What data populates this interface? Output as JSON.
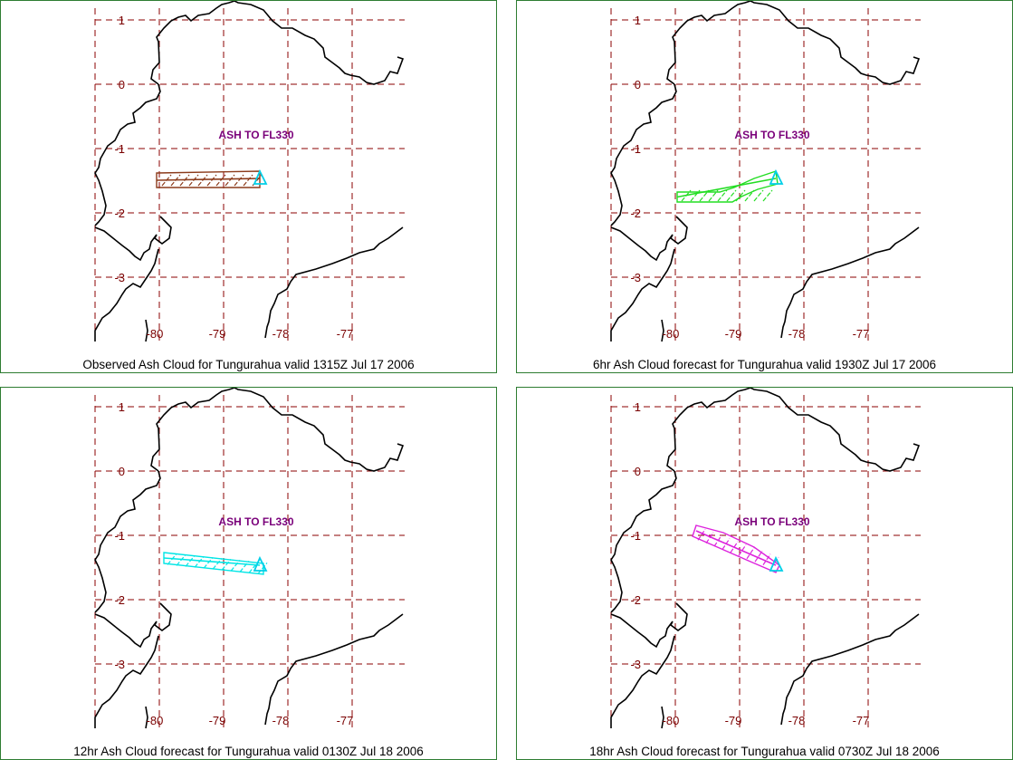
{
  "panels": [
    {
      "caption": "Observed Ash Cloud for Tungurahua valid 1315Z Jul 17 2006",
      "ash_label": "ASH TO FL330",
      "cloud_color": "#8b3a1a",
      "cloud_shape": "band-horizontal",
      "lat_labels": [
        "1",
        "0",
        "-1",
        "-2",
        "-3"
      ],
      "lon_labels": [
        "-80",
        "-79",
        "-78",
        "-77"
      ]
    },
    {
      "caption": "6hr Ash Cloud forecast for Tungurahua valid 1930Z Jul 17 2006",
      "ash_label": "ASH TO FL330",
      "cloud_color": "#22dd22",
      "cloud_shape": "band-bent",
      "lat_labels": [
        "1",
        "0",
        "-1",
        "-2",
        "-3"
      ],
      "lon_labels": [
        "-80",
        "-79",
        "-78",
        "-77"
      ]
    },
    {
      "caption": "12hr Ash Cloud forecast for Tungurahua valid 0130Z Jul 18 2006",
      "ash_label": "ASH TO FL330",
      "cloud_color": "#00e5e5",
      "cloud_shape": "band-slight-tilt",
      "lat_labels": [
        "1",
        "0",
        "-1",
        "-2",
        "-3"
      ],
      "lon_labels": [
        "-80",
        "-79",
        "-78",
        "-77"
      ]
    },
    {
      "caption": "18hr Ash Cloud forecast for Tungurahua valid 0730Z Jul 18 2006",
      "ash_label": "ASH TO FL330",
      "cloud_color": "#dd22dd",
      "cloud_shape": "band-diagonal",
      "lat_labels": [
        "1",
        "0",
        "-1",
        "-2",
        "-3"
      ],
      "lon_labels": [
        "-80",
        "-79",
        "-78",
        "-77"
      ]
    }
  ],
  "colors": {
    "panel_border": "#2e7d32",
    "grid": "#8b0000",
    "coast": "#000000",
    "volcano_marker": "#00cfe8",
    "ash_label": "#7a007a"
  },
  "icons": {
    "volcano_marker": "triangle-volcano-icon"
  }
}
